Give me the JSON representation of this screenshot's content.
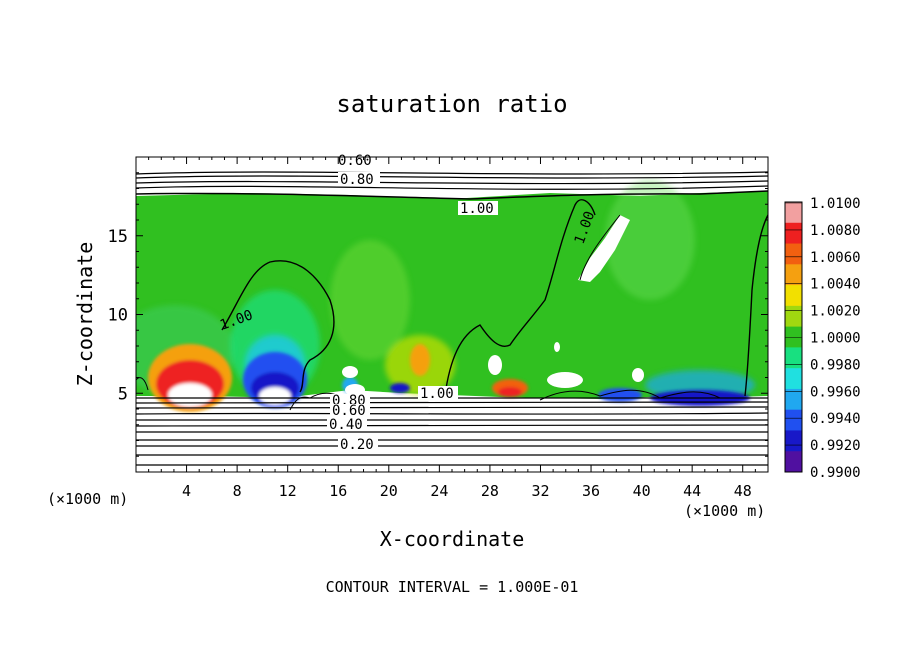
{
  "chart_data": {
    "type": "heatmap",
    "title": "saturation ratio",
    "xlabel": "X-coordinate",
    "ylabel": "Z-coordinate",
    "x_unit": "(×1000 m)",
    "y_unit": "(×1000 m)",
    "xlim": [
      0,
      50
    ],
    "ylim": [
      0,
      20
    ],
    "x_ticks": [
      4,
      8,
      12,
      16,
      20,
      24,
      28,
      32,
      36,
      40,
      44,
      48
    ],
    "y_ticks": [
      5,
      10,
      15
    ],
    "footnote": "CONTOUR INTERVAL = 1.000E-01",
    "colorbar": {
      "range": [
        0.99,
        1.01
      ],
      "labels": [
        "1.0100",
        "1.0080",
        "1.0060",
        "1.0040",
        "1.0020",
        "1.0000",
        "0.9980",
        "0.9960",
        "0.9940",
        "0.9920",
        "0.9900"
      ],
      "colors": [
        "#f2a0a0",
        "#ee2020",
        "#f26010",
        "#f5a010",
        "#f2e000",
        "#a0d810",
        "#30c020",
        "#18e080",
        "#20e0e0",
        "#20a8f0",
        "#2050f0",
        "#1818c8",
        "#5010a0"
      ]
    },
    "contour_lines": [
      {
        "value": "0.60",
        "z": 19.3
      },
      {
        "value": "0.80",
        "z": 18.6
      },
      {
        "value": "1.00",
        "z": 17.0
      },
      {
        "value": "0.80",
        "z": 4.45
      },
      {
        "value": "0.60",
        "z": 4.0
      },
      {
        "value": "0.40",
        "z": 3.2
      },
      {
        "value": "0.20",
        "z": 1.9
      },
      {
        "value": "1.00",
        "z": 4.9
      }
    ],
    "features": [
      {
        "kind": "supersaturated",
        "x": 4.5,
        "z": 5.8,
        "peak": 1.008
      },
      {
        "kind": "subsaturated",
        "x": 10.5,
        "z": 5.8,
        "peak": 0.994
      },
      {
        "kind": "supersaturated",
        "x": 22.5,
        "z": 6.5,
        "peak": 1.004
      },
      {
        "kind": "supersaturated",
        "x": 29.5,
        "z": 5.5,
        "peak": 1.006
      },
      {
        "kind": "subsaturated",
        "x": 45.0,
        "z": 5.2,
        "peak": 0.992
      },
      {
        "kind": "subsaturated",
        "x": 38.0,
        "z": 5.2,
        "peak": 0.993
      }
    ]
  }
}
